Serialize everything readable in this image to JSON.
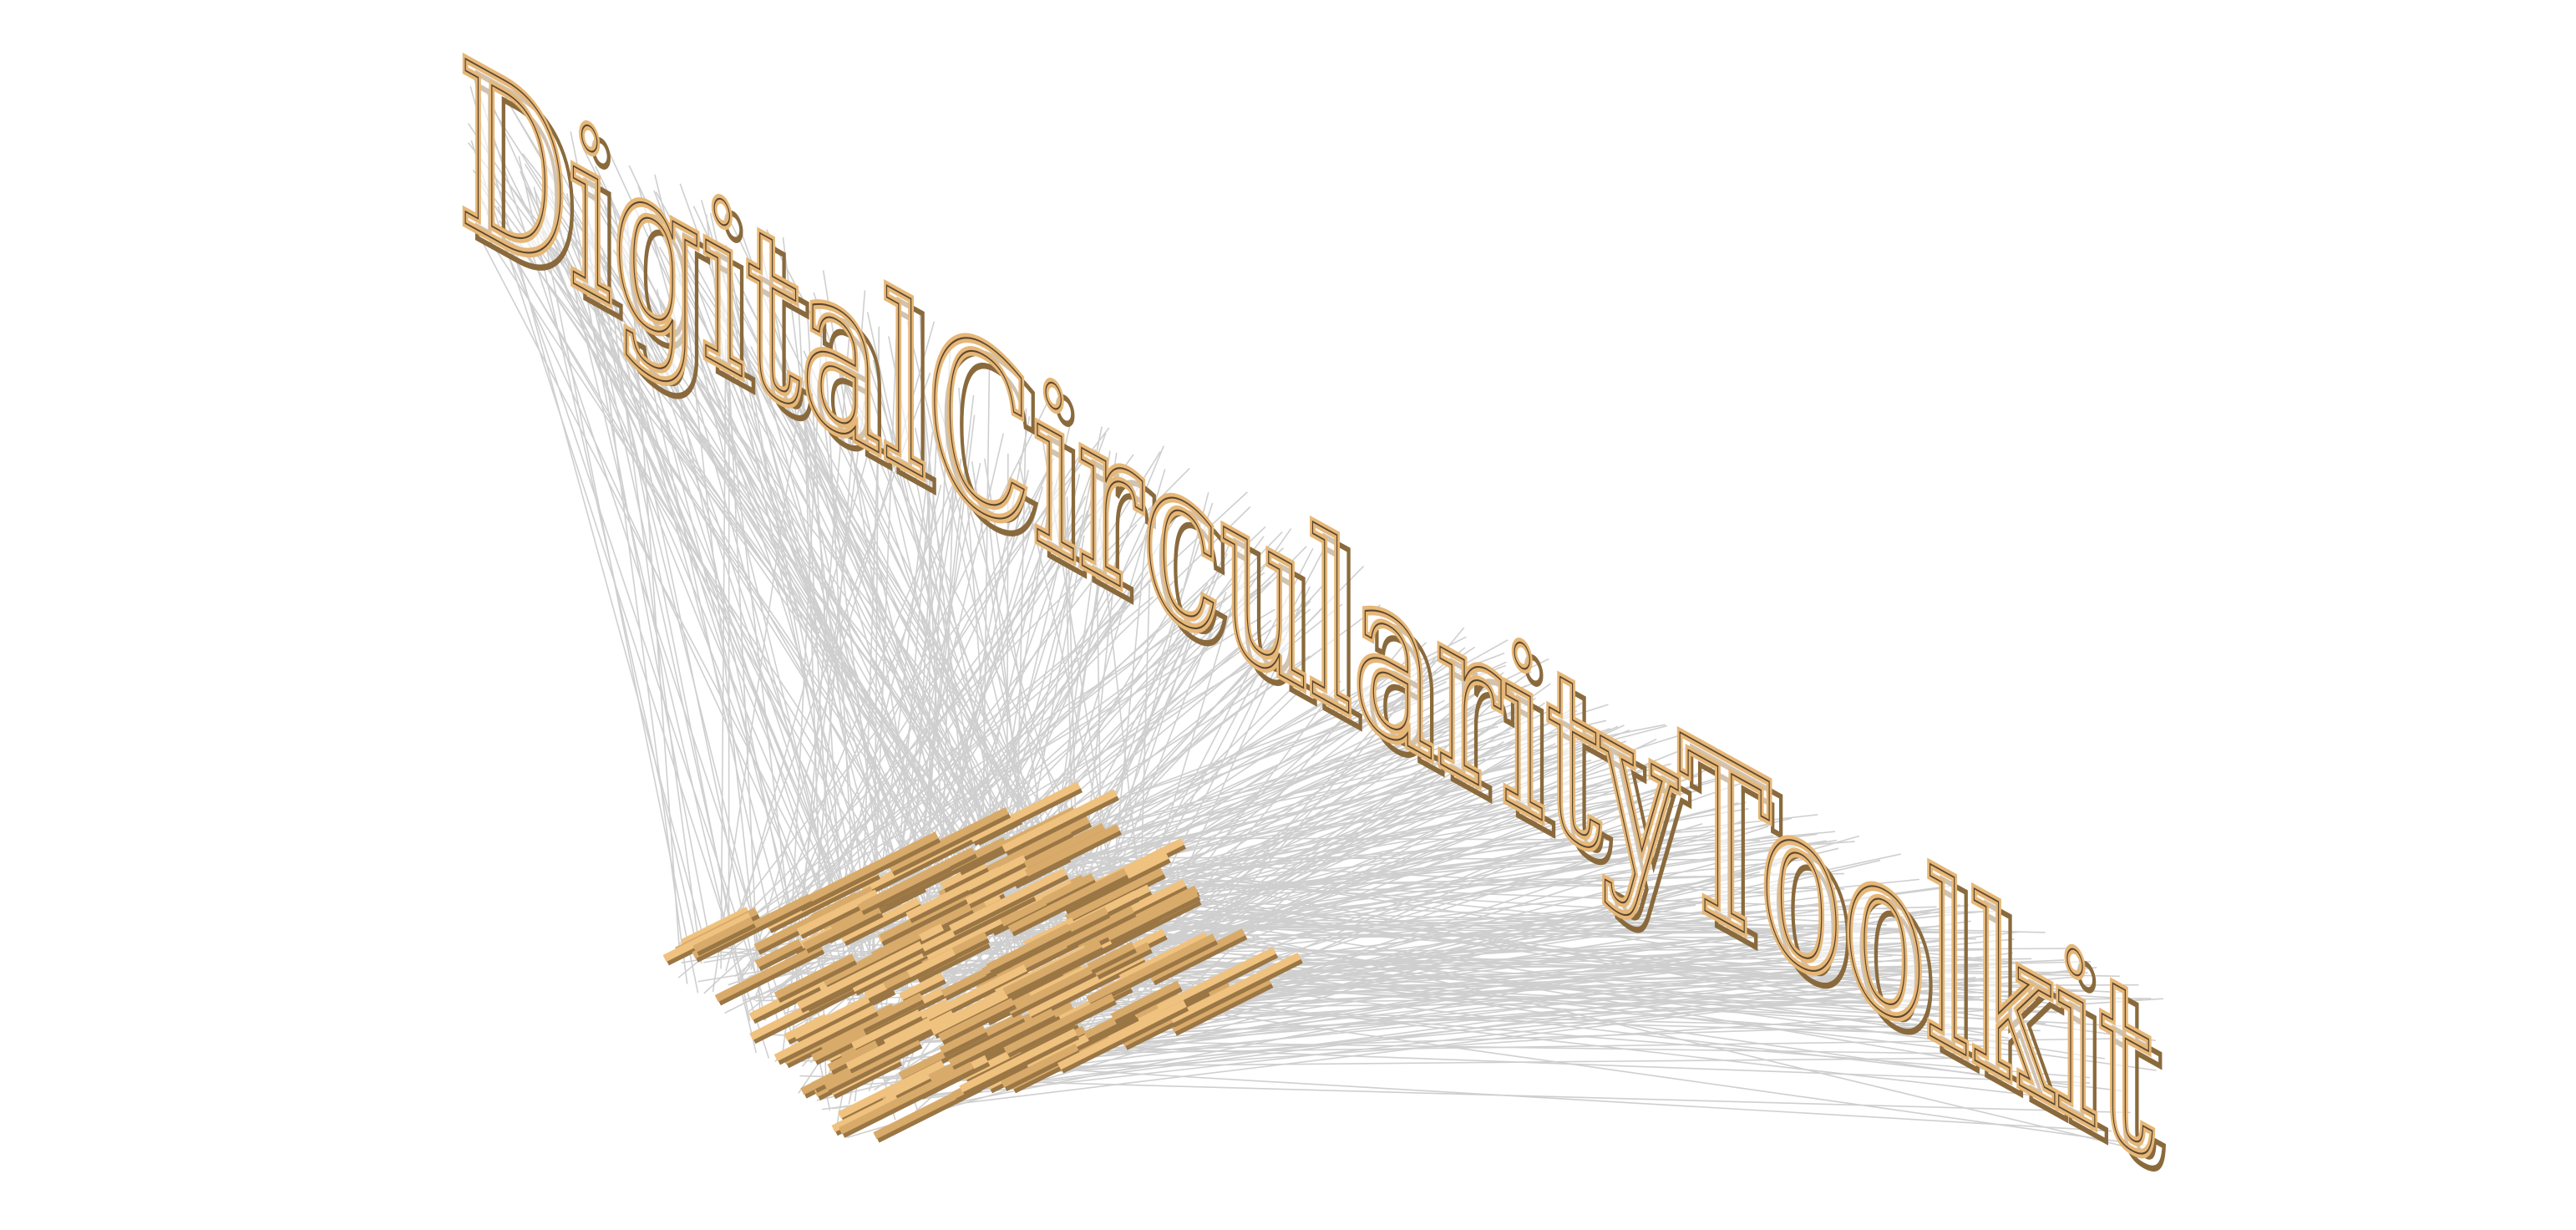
{
  "text": "DigitalCircularityToolkit"
}
